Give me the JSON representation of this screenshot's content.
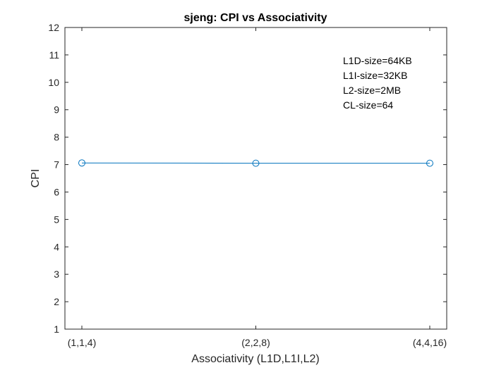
{
  "chart_data": {
    "type": "line",
    "title": "sjeng: CPI vs Associativity",
    "xlabel": "Associativity (L1D,L1I,L2)",
    "ylabel": "CPI",
    "categories": [
      "(1,1,4)",
      "(2,2,8)",
      "(4,4,16)"
    ],
    "series": [
      {
        "values": [
          7.06,
          7.05,
          7.05
        ],
        "color": "#0072bd",
        "marker": "circle"
      }
    ],
    "ylim": [
      1,
      12
    ],
    "yticks": [
      "1",
      "2",
      "3",
      "4",
      "5",
      "6",
      "7",
      "8",
      "9",
      "10",
      "11",
      "12"
    ],
    "grid": false,
    "annotations": [
      "L1D-size=64KB",
      "L1I-size=32KB",
      "L2-size=2MB",
      "CL-size=64"
    ]
  }
}
